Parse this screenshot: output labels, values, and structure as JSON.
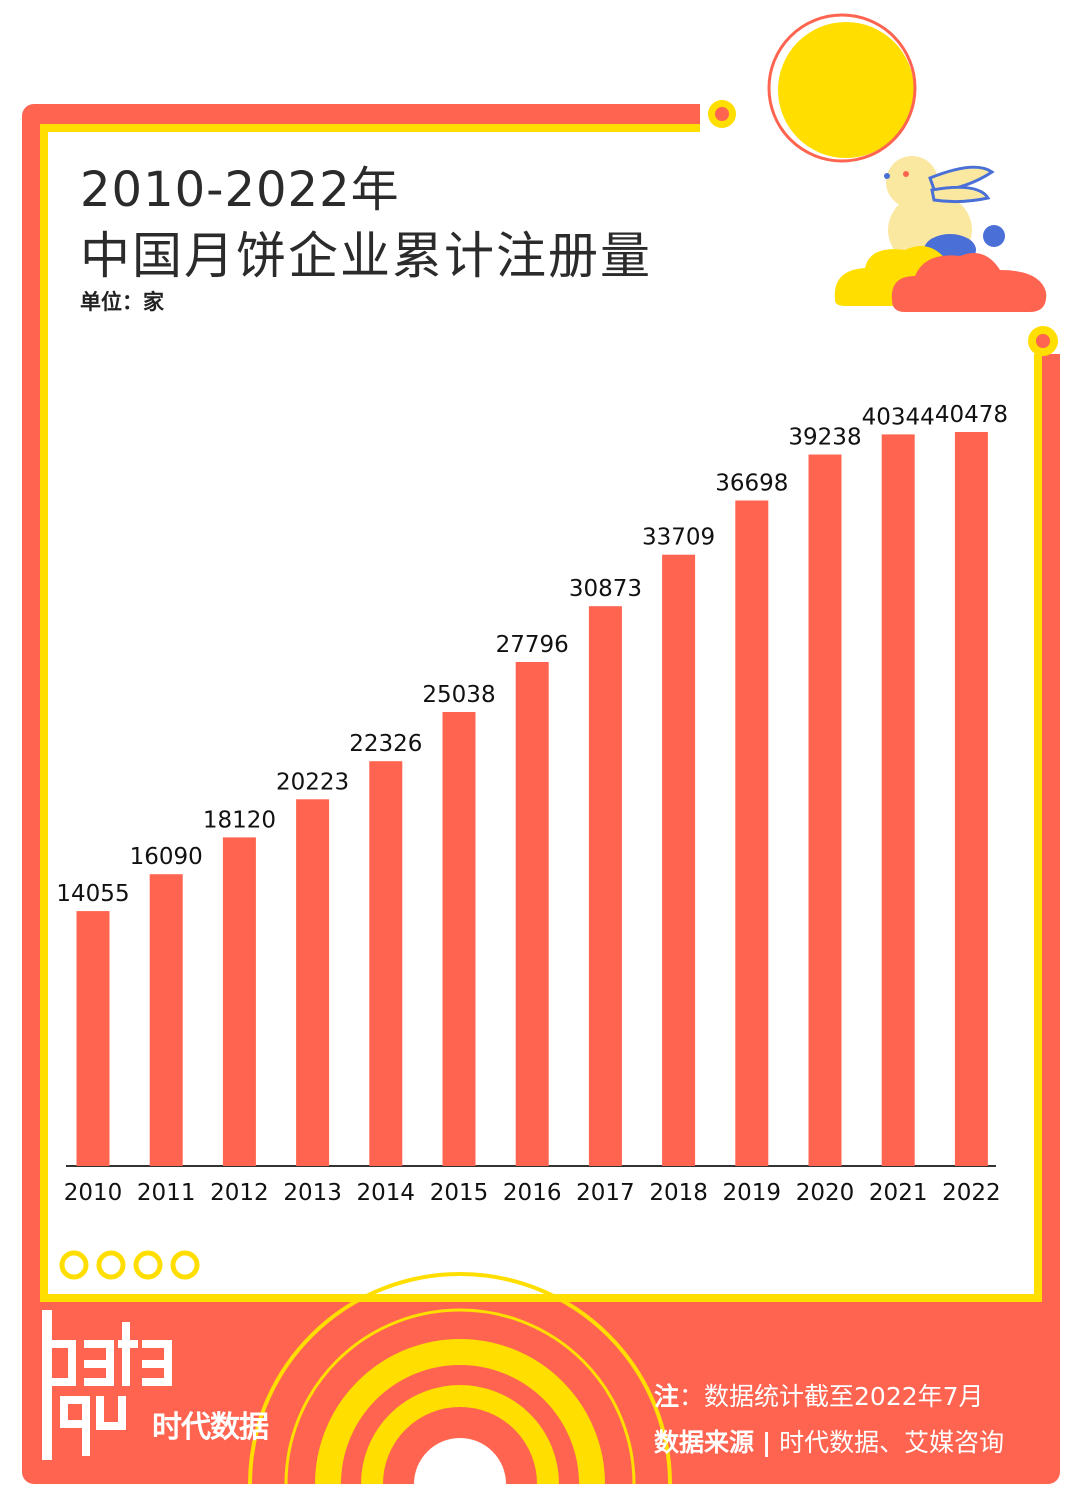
{
  "title_line1": "2010-2022年",
  "title_line2": "中国月饼企业累计注册量",
  "unit": "单位：家",
  "note_label": "注",
  "note_text": "：数据统计截至2022年7月",
  "source_label": "数据来源",
  "source_sep": "|",
  "source_text": "时代数据、艾媒咨询",
  "logo_word": "data",
  "logo_cn": "时代数据",
  "colors": {
    "bar": "#ff6450",
    "frame_red": "#ff6450",
    "frame_yellow": "#ffde00",
    "title": "#2b2b2b"
  },
  "chart_data": {
    "type": "bar",
    "categories": [
      "2010",
      "2011",
      "2012",
      "2013",
      "2014",
      "2015",
      "2016",
      "2017",
      "2018",
      "2019",
      "2020",
      "2021",
      "2022"
    ],
    "values": [
      14055,
      16090,
      18120,
      20223,
      22326,
      25038,
      27796,
      30873,
      33709,
      36698,
      39238,
      40344,
      40478
    ],
    "title": "2010-2022年 中国月饼企业累计注册量",
    "ylabel": "单位：家",
    "xlabel": "",
    "ylim": [
      0,
      45000
    ],
    "grid": false
  }
}
